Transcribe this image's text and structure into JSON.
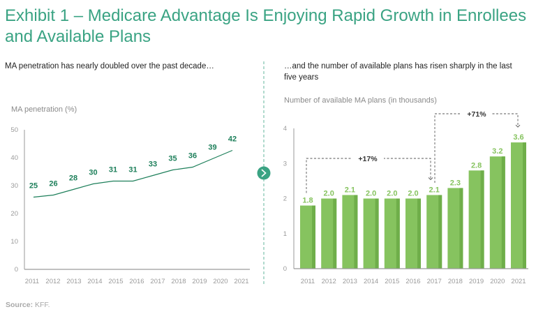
{
  "header": {
    "title": "Exhibit 1 – Medicare Advantage Is Enjoying Rapid Growth in Enrollees and Available Plans"
  },
  "left_panel": {
    "subtitle": "MA penetration has nearly doubled over the past decade…"
  },
  "right_panel": {
    "subtitle": "…and the number of available plans has risen sharply in the last five years"
  },
  "divider": {
    "icon": "chevron-right-icon",
    "color": "#3aa383"
  },
  "source": {
    "label": "Source:",
    "text": "KFF."
  },
  "colors": {
    "title": "#3aa383",
    "line": "#1d7f5a",
    "bar": "#86c35f",
    "bar_shade": "#6fae4a"
  },
  "chart_data": [
    {
      "type": "line",
      "title": "MA penetration has nearly doubled over the past decade…",
      "ylabel": "MA penetration (%)",
      "xlabel": "",
      "categories": [
        "2011",
        "2012",
        "2013",
        "2014",
        "2015",
        "2016",
        "2017",
        "2018",
        "2019",
        "2020",
        "2021"
      ],
      "values": [
        25,
        26,
        28,
        30,
        31,
        31,
        33,
        35,
        36,
        39,
        42
      ],
      "data_labels": [
        "25",
        "26",
        "28",
        "30",
        "31",
        "31",
        "33",
        "35",
        "36",
        "39",
        "42"
      ],
      "yticks": [
        0,
        10,
        20,
        30,
        40,
        50
      ],
      "ylim": [
        0,
        50
      ],
      "grid": false,
      "legend": "none"
    },
    {
      "type": "bar",
      "title": "…and the number of available plans has risen sharply in the last five years",
      "ylabel": "Number of available MA plans (in thousands)",
      "xlabel": "",
      "categories": [
        "2011",
        "2012",
        "2013",
        "2014",
        "2015",
        "2016",
        "2017",
        "2018",
        "2019",
        "2020",
        "2021"
      ],
      "values": [
        1.8,
        2.0,
        2.1,
        2.0,
        2.0,
        2.0,
        2.1,
        2.3,
        2.8,
        3.2,
        3.6
      ],
      "data_labels": [
        "1.8",
        "2.0",
        "2.1",
        "2.0",
        "2.0",
        "2.0",
        "2.1",
        "2.3",
        "2.8",
        "3.2",
        "3.6"
      ],
      "yticks": [
        0,
        1,
        2,
        3,
        4
      ],
      "ylim": [
        0,
        4
      ],
      "grid": false,
      "legend": "none",
      "annotations": [
        {
          "label": "+17%",
          "from": "2011",
          "to": "2017"
        },
        {
          "label": "+71%",
          "from": "2017",
          "to": "2021"
        }
      ]
    }
  ]
}
